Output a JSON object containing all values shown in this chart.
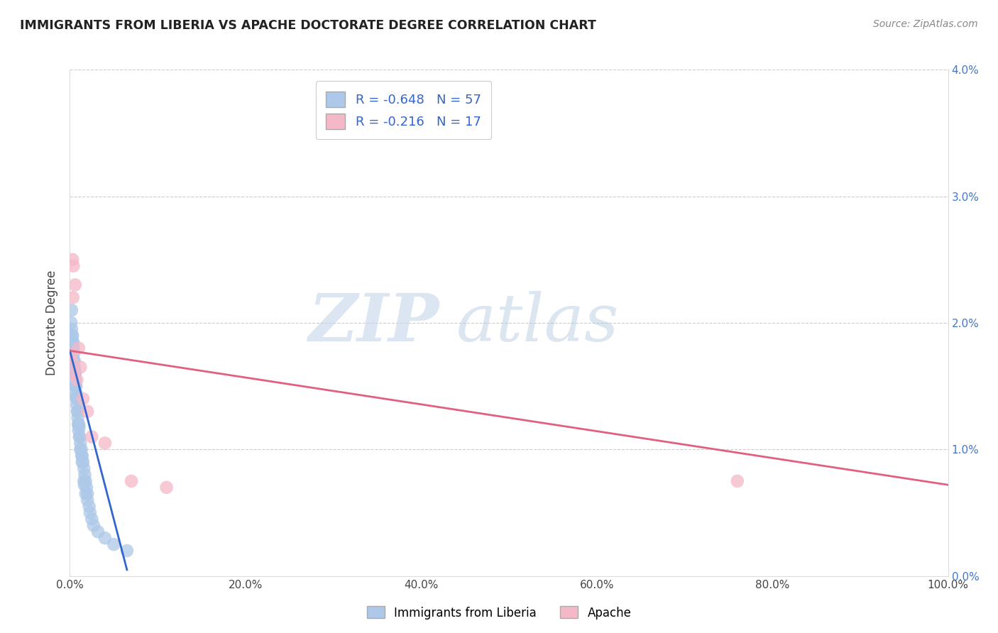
{
  "title": "IMMIGRANTS FROM LIBERIA VS APACHE DOCTORATE DEGREE CORRELATION CHART",
  "source": "Source: ZipAtlas.com",
  "ylabel": "Doctorate Degree",
  "legend_label1": "Immigrants from Liberia",
  "legend_label2": "Apache",
  "r1": -0.648,
  "n1": 57,
  "r2": -0.216,
  "n2": 17,
  "color1": "#adc8e8",
  "color2": "#f4b8c8",
  "line_color1": "#3366cc",
  "line_color2": "#e06080",
  "watermark_zip": "ZIP",
  "watermark_atlas": "atlas",
  "xlim": [
    0,
    100
  ],
  "ylim": [
    0,
    4.0
  ],
  "xticks": [
    0,
    20,
    40,
    60,
    80,
    100
  ],
  "yticks": [
    0,
    1,
    2,
    3,
    4
  ],
  "blue_scatter_x": [
    0.15,
    0.2,
    0.25,
    0.3,
    0.35,
    0.4,
    0.45,
    0.5,
    0.55,
    0.6,
    0.65,
    0.7,
    0.75,
    0.8,
    0.85,
    0.9,
    0.95,
    1.0,
    1.1,
    1.2,
    1.3,
    1.4,
    1.5,
    1.6,
    1.7,
    1.8,
    1.9,
    2.0,
    2.2,
    2.5,
    0.3,
    0.4,
    0.5,
    0.6,
    0.7,
    0.8,
    0.9,
    1.0,
    1.1,
    1.2,
    1.4,
    1.6,
    1.8,
    2.0,
    2.3,
    2.7,
    3.2,
    4.0,
    5.0,
    6.5,
    0.2,
    0.35,
    0.55,
    0.75,
    1.05,
    1.35,
    1.65
  ],
  "blue_scatter_y": [
    2.0,
    1.95,
    1.9,
    1.85,
    1.8,
    1.75,
    1.7,
    1.65,
    1.6,
    1.55,
    1.5,
    1.45,
    1.4,
    1.35,
    1.3,
    1.25,
    1.2,
    1.15,
    1.1,
    1.05,
    1.0,
    0.95,
    0.9,
    0.85,
    0.8,
    0.75,
    0.7,
    0.65,
    0.55,
    0.45,
    1.9,
    1.8,
    1.7,
    1.6,
    1.5,
    1.4,
    1.3,
    1.2,
    1.1,
    1.0,
    0.9,
    0.75,
    0.65,
    0.6,
    0.5,
    0.4,
    0.35,
    0.3,
    0.25,
    0.2,
    2.1,
    1.85,
    1.62,
    1.42,
    1.18,
    0.95,
    0.72
  ],
  "pink_scatter_x": [
    0.1,
    0.2,
    0.3,
    0.4,
    0.5,
    0.6,
    0.8,
    1.0,
    1.2,
    1.5,
    2.0,
    2.5,
    4.0,
    7.0,
    11.0,
    76.0,
    0.35
  ],
  "pink_scatter_y": [
    1.75,
    1.7,
    2.5,
    2.45,
    1.6,
    2.3,
    1.55,
    1.8,
    1.65,
    1.4,
    1.3,
    1.1,
    1.05,
    0.75,
    0.7,
    0.75,
    2.2
  ],
  "blue_line_x": [
    0.0,
    6.5
  ],
  "blue_line_y": [
    1.78,
    0.05
  ],
  "pink_line_x": [
    0.0,
    100.0
  ],
  "pink_line_y": [
    1.78,
    0.72
  ]
}
